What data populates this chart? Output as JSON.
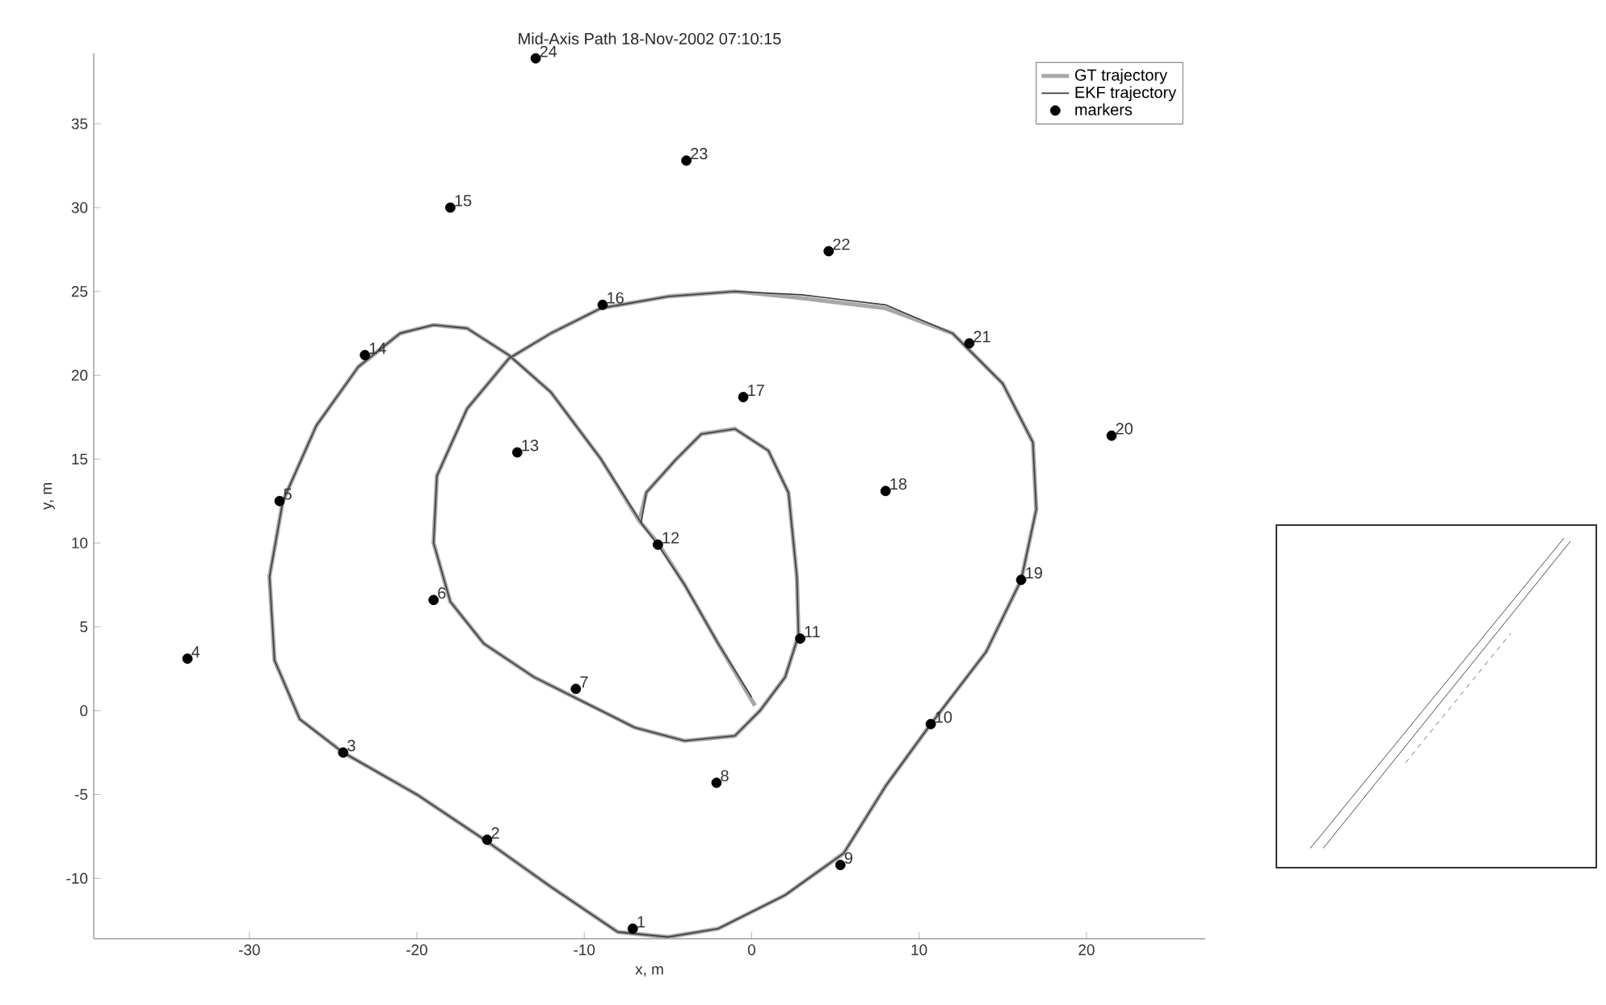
{
  "chart_data": {
    "type": "line",
    "title": "Mid-Axis Path 18-Nov-2002 07:10:15",
    "xlabel": "x, m",
    "ylabel": "y, m",
    "xlim": [
      -39.3,
      27.1
    ],
    "ylim": [
      -13.6,
      39.2
    ],
    "xticks": [
      -30,
      -20,
      -10,
      0,
      10,
      20
    ],
    "yticks": [
      -10,
      -5,
      0,
      5,
      10,
      15,
      20,
      25,
      30,
      35
    ],
    "legend": "top right",
    "grid": false,
    "series": [
      {
        "name": "GT trajectory",
        "color": "#a8a8a8",
        "line_style": "solid",
        "marker": "none",
        "x": [
          0.2,
          -2,
          -4,
          -5.6,
          -6.7,
          -9,
          -12,
          -14.5,
          -17,
          -19,
          -21,
          -23.5,
          -26,
          -28,
          -28.8,
          -28.5,
          -27,
          -24.4,
          -20,
          -15.8,
          -12,
          -8,
          -5,
          -2,
          2,
          5.5,
          8,
          10.7,
          14,
          16.1,
          17,
          16.8,
          15,
          12,
          8,
          3,
          -1,
          -5,
          -9,
          -12,
          -14.5,
          -17,
          -18.8,
          -19,
          -18,
          -16,
          -13,
          -10,
          -7,
          -4,
          -1,
          0.5,
          2,
          2.8,
          2.7,
          2.2,
          1,
          -1,
          -3,
          -4.5,
          -6.3,
          -6.7
        ],
        "values": [
          0.3,
          4,
          7.5,
          10,
          11.3,
          15,
          19,
          21.2,
          22.8,
          23,
          22.5,
          20.5,
          17,
          12.5,
          8,
          3,
          -0.5,
          -2.5,
          -5,
          -7.8,
          -10.5,
          -13.2,
          -13.5,
          -13,
          -11,
          -8.5,
          -4.5,
          -0.8,
          3.5,
          7.8,
          12,
          16,
          19.5,
          22.5,
          24,
          24.6,
          25,
          24.7,
          24,
          22.5,
          21,
          18,
          14,
          10,
          6.5,
          4,
          2,
          0.5,
          -1,
          -1.8,
          -1.5,
          0,
          2,
          4.5,
          8,
          13,
          15.5,
          16.8,
          16.5,
          15,
          13,
          11.3
        ]
      },
      {
        "name": "EKF trajectory",
        "color": "#3c3c3c",
        "line_style": "solid",
        "marker": "none",
        "x": [
          0,
          -2,
          -4,
          -5.6,
          -6.6,
          -9,
          -12,
          -14.5,
          -17,
          -19,
          -21,
          -23.5,
          -26,
          -28,
          -28.8,
          -28.5,
          -27,
          -24.4,
          -20,
          -15.8,
          -12,
          -8,
          -5,
          -2,
          2,
          5.5,
          8,
          10.7,
          14,
          16.1,
          17,
          16.8,
          15,
          12,
          8,
          3,
          -1,
          -5,
          -9,
          -12,
          -14.5,
          -17,
          -18.8,
          -19,
          -18,
          -16,
          -13,
          -10,
          -7,
          -4,
          -1,
          0.5,
          2,
          2.8,
          2.7,
          2.2,
          1,
          -1,
          -3,
          -4.5,
          -6.3,
          -6.6
        ],
        "values": [
          0.8,
          4,
          7.5,
          9.9,
          11.2,
          15,
          19,
          21.2,
          22.8,
          23,
          22.5,
          20.5,
          17,
          12.5,
          8,
          3,
          -0.5,
          -2.5,
          -5,
          -7.8,
          -10.5,
          -13.2,
          -13.5,
          -13,
          -11,
          -8.5,
          -4.5,
          -0.8,
          3.5,
          7.8,
          12,
          16,
          19.5,
          22.5,
          24.2,
          24.8,
          25,
          24.7,
          24,
          22.5,
          21,
          18,
          14,
          10,
          6.5,
          4,
          2,
          0.5,
          -1,
          -1.8,
          -1.5,
          0,
          2,
          4.5,
          8,
          13,
          15.5,
          16.8,
          16.5,
          15,
          13,
          11.2
        ]
      },
      {
        "name": "markers",
        "type": "scatter",
        "color": "#000000",
        "marker": "circle",
        "x": [
          -7.1,
          -15.8,
          -24.4,
          -33.7,
          -28.2,
          -19.0,
          -10.5,
          -2.1,
          5.3,
          10.7,
          2.9,
          -5.6,
          -14.0,
          -23.1,
          -18.0,
          -8.9,
          -0.5,
          8.0,
          16.1,
          21.5,
          13.0,
          4.6,
          -3.9,
          -12.9
        ],
        "values": [
          -13.0,
          -7.7,
          -2.5,
          3.1,
          12.5,
          6.6,
          1.3,
          -4.3,
          -9.2,
          -0.8,
          4.3,
          9.9,
          15.4,
          21.2,
          30.0,
          24.2,
          18.7,
          13.1,
          7.8,
          16.4,
          21.9,
          27.4,
          32.8,
          38.9
        ]
      }
    ],
    "annotations": [
      {
        "text": "1",
        "x": -7.1,
        "y": -13.0
      },
      {
        "text": "2",
        "x": -15.8,
        "y": -7.7
      },
      {
        "text": "3",
        "x": -24.4,
        "y": -2.5
      },
      {
        "text": "4",
        "x": -33.7,
        "y": 3.1
      },
      {
        "text": "5",
        "x": -28.2,
        "y": 12.5
      },
      {
        "text": "6",
        "x": -19.0,
        "y": 6.6
      },
      {
        "text": "7",
        "x": -10.5,
        "y": 1.3
      },
      {
        "text": "8",
        "x": -2.1,
        "y": -4.3
      },
      {
        "text": "9",
        "x": 5.3,
        "y": -9.2
      },
      {
        "text": "10",
        "x": 10.7,
        "y": -0.8
      },
      {
        "text": "11",
        "x": 2.9,
        "y": 4.3
      },
      {
        "text": "12",
        "x": -5.6,
        "y": 9.9
      },
      {
        "text": "13",
        "x": -14.0,
        "y": 15.4
      },
      {
        "text": "14",
        "x": -23.1,
        "y": 21.2
      },
      {
        "text": "15",
        "x": -18.0,
        "y": 30.0
      },
      {
        "text": "16",
        "x": -8.9,
        "y": 24.2
      },
      {
        "text": "17",
        "x": -0.5,
        "y": 18.7
      },
      {
        "text": "18",
        "x": 8.0,
        "y": 13.1
      },
      {
        "text": "19",
        "x": 16.1,
        "y": 7.8
      },
      {
        "text": "20",
        "x": 21.5,
        "y": 16.4
      },
      {
        "text": "21",
        "x": 13.0,
        "y": 21.9
      },
      {
        "text": "22",
        "x": 4.6,
        "y": 27.4
      },
      {
        "text": "23",
        "x": -3.9,
        "y": 32.8
      },
      {
        "text": "24",
        "x": -12.9,
        "y": 38.9
      }
    ]
  }
}
